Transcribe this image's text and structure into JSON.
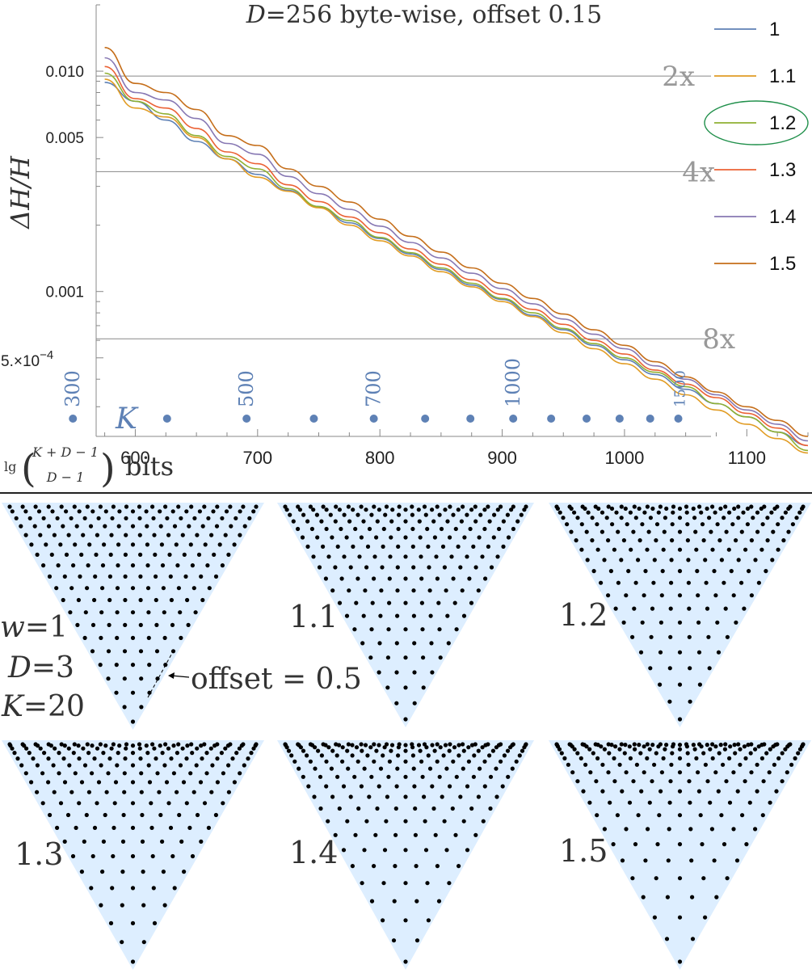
{
  "chart_data": {
    "type": "line",
    "title": "D=256 byte-wise, offset 0.15",
    "title_parts": {
      "d": "D",
      "rest": "=256 byte-wise, offset 0.15"
    },
    "ylabel": "ΔH/H",
    "xlabel_formula": "lg((K+D−1) choose (D−1))",
    "xlabel_parts": {
      "lg": "lg",
      "top": "K + D − 1",
      "bottom": "D − 1",
      "unit": "bits"
    },
    "y_scale": "log",
    "ylim": [
      0.00022,
      0.02
    ],
    "xlim": [
      568,
      1150
    ],
    "x_ticks": [
      600,
      700,
      800,
      900,
      1000,
      1100
    ],
    "y_ticks": [
      {
        "value": 0.01,
        "label": "0.010"
      },
      {
        "value": 0.005,
        "label": "0.005"
      },
      {
        "value": 0.001,
        "label": "0.001"
      }
    ],
    "y_tick_sci": {
      "value": 0.0005,
      "mantissa": "5.×10",
      "exponent": "−4"
    },
    "reference_lines": [
      {
        "value": 0.0095,
        "label": "2x"
      },
      {
        "value": 0.0035,
        "label": "4x"
      },
      {
        "value": 0.00061,
        "label": "8x"
      }
    ],
    "legend_placement": "right",
    "highlighted_series": "1.2",
    "k_label": "K",
    "k_markers": [
      {
        "x": 549,
        "label": "300"
      },
      {
        "x": 626,
        "label": ""
      },
      {
        "x": 691,
        "label": "500"
      },
      {
        "x": 746,
        "label": ""
      },
      {
        "x": 795,
        "label": "700"
      },
      {
        "x": 837,
        "label": ""
      },
      {
        "x": 874,
        "label": ""
      },
      {
        "x": 909,
        "label": "1000"
      },
      {
        "x": 940,
        "label": ""
      },
      {
        "x": 969,
        "label": ""
      },
      {
        "x": 996,
        "label": ""
      },
      {
        "x": 1021,
        "label": ""
      },
      {
        "x": 1044,
        "label": "1500"
      }
    ],
    "x": [
      575,
      600,
      625,
      650,
      675,
      700,
      725,
      750,
      775,
      800,
      825,
      850,
      875,
      900,
      925,
      950,
      975,
      1000,
      1025,
      1050,
      1075,
      1100,
      1125,
      1150
    ],
    "series": [
      {
        "name": "1",
        "color": "#5e81b5",
        "values": [
          0.0089,
          0.0073,
          0.006,
          0.0048,
          0.004,
          0.0034,
          0.00288,
          0.00243,
          0.00205,
          0.00174,
          0.00148,
          0.00126,
          0.00107,
          0.00092,
          0.00078,
          0.00067,
          0.00057,
          0.00049,
          0.00042,
          0.00036,
          0.00031,
          0.00027,
          0.00023,
          0.0002
        ]
      },
      {
        "name": "1.1",
        "color": "#e19c24",
        "values": [
          0.0092,
          0.0068,
          0.0062,
          0.005,
          0.004,
          0.0033,
          0.00285,
          0.0024,
          0.002,
          0.0017,
          0.00145,
          0.00123,
          0.00105,
          0.0009,
          0.00077,
          0.00065,
          0.00055,
          0.00047,
          0.0004,
          0.00034,
          0.00029,
          0.00025,
          0.000215,
          0.000185
        ]
      },
      {
        "name": "1.2",
        "color": "#8fb032",
        "values": [
          0.0098,
          0.0073,
          0.0064,
          0.0051,
          0.0041,
          0.0036,
          0.00293,
          0.00243,
          0.0021,
          0.00176,
          0.0015,
          0.00128,
          0.00109,
          0.00093,
          0.0008,
          0.00068,
          0.00058,
          0.0005,
          0.00043,
          0.00037,
          0.00031,
          0.00027,
          0.00023,
          0.00019
        ]
      },
      {
        "name": "1.3",
        "color": "#eb6235",
        "values": [
          0.0105,
          0.0075,
          0.0068,
          0.0055,
          0.0043,
          0.0038,
          0.00305,
          0.00256,
          0.00218,
          0.00185,
          0.00156,
          0.00133,
          0.00113,
          0.00097,
          0.00083,
          0.00071,
          0.0006,
          0.00052,
          0.00044,
          0.00038,
          0.00033,
          0.00028,
          0.00024,
          0.0002
        ]
      },
      {
        "name": "1.4",
        "color": "#8778b3",
        "values": [
          0.0115,
          0.008,
          0.0074,
          0.0061,
          0.0047,
          0.0042,
          0.00333,
          0.00278,
          0.00236,
          0.00198,
          0.00167,
          0.00142,
          0.00121,
          0.00103,
          0.00088,
          0.00075,
          0.00064,
          0.00055,
          0.00046,
          0.0004,
          0.00034,
          0.00029,
          0.00025,
          0.00021
        ]
      },
      {
        "name": "1.5",
        "color": "#c56e1a",
        "values": [
          0.0128,
          0.0088,
          0.008,
          0.0067,
          0.0051,
          0.0046,
          0.0036,
          0.003,
          0.00255,
          0.00213,
          0.00178,
          0.00151,
          0.00128,
          0.00109,
          0.00093,
          0.00079,
          0.00067,
          0.00057,
          0.00048,
          0.00041,
          0.00035,
          0.0003,
          0.00026,
          0.00022
        ]
      }
    ]
  },
  "triangles": {
    "w_label": "w",
    "w_value": "=1",
    "params": [
      {
        "sym": "D",
        "value": "=3"
      },
      {
        "sym": "K",
        "value": "=20"
      }
    ],
    "offset_note": "offset = 0.5",
    "dots_per_edge": 20,
    "fill_color": "#ddeeff",
    "dot_color": "#000000",
    "items": [
      {
        "label": "",
        "w": 1.0
      },
      {
        "label": "1.1",
        "w": 1.1
      },
      {
        "label": "1.2",
        "w": 1.2
      },
      {
        "label": "1.3",
        "w": 1.3
      },
      {
        "label": "1.4",
        "w": 1.4
      },
      {
        "label": "1.5",
        "w": 1.5
      }
    ]
  }
}
